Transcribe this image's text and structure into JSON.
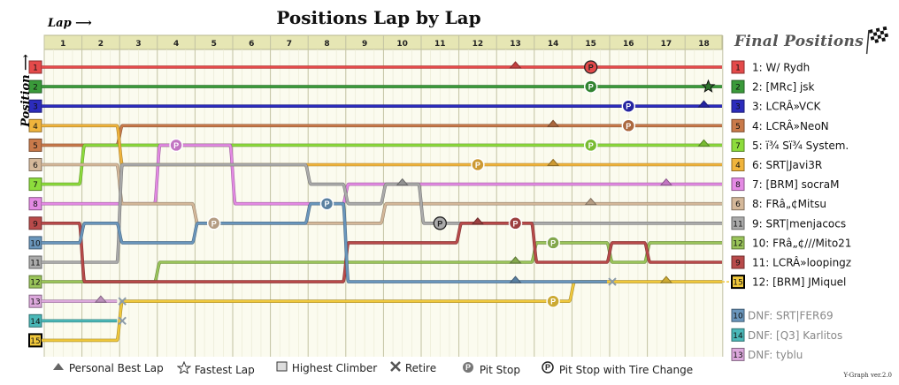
{
  "title": "Positions Lap by Lap",
  "lap_label": "Lap",
  "position_label": "Position",
  "final_positions_title": "Final Positions",
  "version": "Y-Graph ver.2.0",
  "legend": [
    {
      "icon": "triangle-icon",
      "label": "Personal Best Lap"
    },
    {
      "icon": "star-icon",
      "label": "Fastest Lap"
    },
    {
      "icon": "square-icon",
      "label": "Highest Climber"
    },
    {
      "icon": "cross-icon",
      "label": "Retire"
    },
    {
      "icon": "pit-icon",
      "label": "Pit Stop"
    },
    {
      "icon": "pit-tire-icon",
      "label": "Pit Stop with Tire Change"
    }
  ],
  "chart_data": {
    "type": "line",
    "title": "Positions Lap by Lap",
    "x_label": "Lap",
    "y_label": "Position",
    "laps": [
      1,
      2,
      3,
      4,
      5,
      6,
      7,
      8,
      9,
      10,
      11,
      12,
      13,
      14,
      15,
      16,
      17,
      18
    ],
    "start_positions": [
      1,
      2,
      3,
      4,
      5,
      6,
      7,
      8,
      9,
      10,
      11,
      12,
      13,
      14,
      15
    ],
    "drivers": [
      {
        "start": 1,
        "color": "#e44a4a",
        "positions": [
          1,
          1,
          1,
          1,
          1,
          1,
          1,
          1,
          1,
          1,
          1,
          1,
          1,
          1,
          1,
          1,
          1,
          1
        ],
        "final": "1: W/ Rydh",
        "best": [
          13
        ],
        "pit": [
          {
            "lap": 15,
            "tire": true
          }
        ]
      },
      {
        "start": 2,
        "color": "#3a9a3a",
        "positions": [
          2,
          2,
          2,
          2,
          2,
          2,
          2,
          2,
          2,
          2,
          2,
          2,
          2,
          2,
          2,
          2,
          2,
          2
        ],
        "final": "2: [MRc] jsk",
        "fastest": 18,
        "pit": [
          {
            "lap": 15,
            "tire": false
          }
        ]
      },
      {
        "start": 3,
        "color": "#2c2cbc",
        "positions": [
          3,
          3,
          3,
          3,
          3,
          3,
          3,
          3,
          3,
          3,
          3,
          3,
          3,
          3,
          3,
          3,
          3,
          3
        ],
        "final": "3: LCRÂ»VCK",
        "best": [
          18
        ],
        "pit": [
          {
            "lap": 16,
            "tire": false
          }
        ]
      },
      {
        "start": 5,
        "color": "#c97a4a",
        "positions": [
          5,
          5,
          4,
          4,
          4,
          4,
          4,
          4,
          4,
          4,
          4,
          4,
          4,
          4,
          4,
          4,
          4,
          4
        ],
        "final": "4: LCRÂ»NeoN",
        "best": [
          14
        ],
        "pit": [
          {
            "lap": 16,
            "tire": false
          }
        ]
      },
      {
        "start": 7,
        "color": "#8ddc3c",
        "positions": [
          7,
          5,
          5,
          5,
          5,
          5,
          5,
          5,
          5,
          5,
          5,
          5,
          5,
          5,
          5,
          5,
          5,
          5
        ],
        "final": "5: ï¾ Sï¾ System.",
        "best": [
          18
        ],
        "pit": [
          {
            "lap": 15,
            "tire": false
          }
        ]
      },
      {
        "start": 4,
        "color": "#f0b43c",
        "positions": [
          4,
          4,
          6,
          6,
          6,
          6,
          6,
          6,
          6,
          6,
          6,
          6,
          6,
          6,
          6,
          6,
          6,
          6
        ],
        "final": "6: SRT|Javi3R",
        "best": [
          14
        ],
        "pit": [
          {
            "lap": 12,
            "tire": false
          }
        ]
      },
      {
        "start": 8,
        "color": "#e48ae4",
        "positions": [
          8,
          8,
          8,
          5,
          5,
          8,
          8,
          8,
          7,
          7,
          7,
          7,
          7,
          7,
          7,
          7,
          7,
          7
        ],
        "final": "7: [BRM] socraM",
        "best": [
          17
        ],
        "pit": [
          {
            "lap": 4,
            "tire": false
          }
        ]
      },
      {
        "start": 6,
        "color": "#d4b89a",
        "positions": [
          6,
          6,
          8,
          8,
          9,
          9,
          9,
          9,
          9,
          8,
          8,
          8,
          8,
          8,
          8,
          8,
          8,
          8
        ],
        "final": "8: FRâ„¢Mitsu",
        "best": [
          15
        ],
        "pit": [
          {
            "lap": 5,
            "tire": false
          }
        ]
      },
      {
        "start": 11,
        "color": "#aaaaaa",
        "positions": [
          11,
          11,
          6,
          6,
          6,
          6,
          6,
          7,
          8,
          7,
          9,
          9,
          9,
          9,
          9,
          9,
          9,
          9
        ],
        "final": "9: SRT|menjacocs",
        "best": [
          10
        ],
        "pit": [
          {
            "lap": 11,
            "tire": true
          }
        ]
      },
      {
        "start": 12,
        "color": "#9ac45a",
        "positions": [
          12,
          12,
          12,
          11,
          11,
          11,
          11,
          11,
          11,
          11,
          11,
          11,
          11,
          10,
          10,
          11,
          10,
          10
        ],
        "final": "10: FRâ„¢///Mito21",
        "best": [
          13
        ],
        "pit": [
          {
            "lap": 14,
            "tire": false
          }
        ]
      },
      {
        "start": 9,
        "color": "#b84a4a",
        "positions": [
          9,
          12,
          12,
          12,
          12,
          12,
          12,
          12,
          10,
          10,
          10,
          9,
          9,
          11,
          11,
          10,
          11,
          11
        ],
        "final": "11: LCRÂ»loopingz",
        "best": [
          12
        ],
        "pit": [
          {
            "lap": 13,
            "tire": false
          }
        ]
      },
      {
        "start": 15,
        "color": "#f0c83c",
        "positions": [
          15,
          15,
          13,
          13,
          13,
          13,
          13,
          13,
          13,
          13,
          13,
          13,
          13,
          13,
          12,
          12,
          12,
          12
        ],
        "final": "12: [BRM] JMiquel",
        "highest_climber": true,
        "best": [
          17
        ],
        "pit": [
          {
            "lap": 14,
            "tire": false
          }
        ]
      },
      {
        "start": 10,
        "color": "#6a96bc",
        "positions": [
          10,
          9,
          10,
          10,
          9,
          9,
          9,
          8,
          12,
          12,
          12,
          12,
          12,
          12,
          12
        ],
        "final": "DNF: SRT|FER69",
        "dnf": true,
        "best": [
          13
        ],
        "pit": [
          {
            "lap": 8,
            "tire": false
          }
        ]
      },
      {
        "start": 14,
        "color": "#4ab8b8",
        "positions": [
          14,
          14
        ],
        "final": "DNF: [Q3] Karlitos",
        "dnf": true
      },
      {
        "start": 13,
        "color": "#dca8dc",
        "positions": [
          13,
          13
        ],
        "final": "DNF: tyblu",
        "dnf": true,
        "best": [
          2
        ]
      }
    ]
  }
}
